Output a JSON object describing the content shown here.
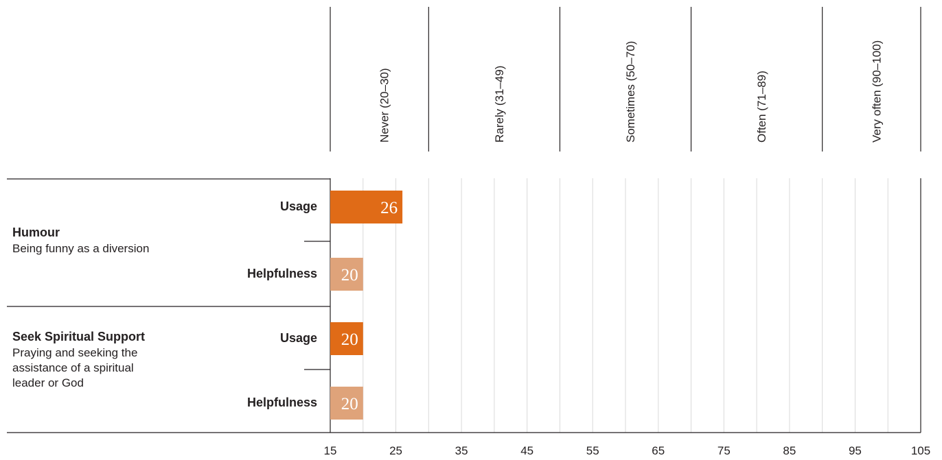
{
  "chart_data": {
    "type": "bar",
    "orientation": "horizontal",
    "xlim": [
      15,
      105
    ],
    "x_ticks": [
      15,
      25,
      35,
      45,
      55,
      65,
      75,
      85,
      95,
      105
    ],
    "bands": [
      {
        "label": "Never (20–30)",
        "from": 15,
        "to": 30
      },
      {
        "label": "Rarely (31–49)",
        "from": 30,
        "to": 50
      },
      {
        "label": "Sometimes (50–70)",
        "from": 50,
        "to": 70
      },
      {
        "label": "Often (71–89)",
        "from": 70,
        "to": 90
      },
      {
        "label": "Very often (90–100)",
        "from": 90,
        "to": 105
      }
    ],
    "groups": [
      {
        "title": "Humour",
        "description": [
          "Being funny as a diversion"
        ],
        "rows": [
          {
            "label": "Usage",
            "value": 26,
            "color": "#e06b17"
          },
          {
            "label": "Helpfulness",
            "value": 20,
            "color": "#dfa37a"
          }
        ]
      },
      {
        "title": "Seek Spiritual Support",
        "description": [
          "Praying and seeking the",
          "assistance of a spiritual",
          "leader or God"
        ],
        "rows": [
          {
            "label": "Usage",
            "value": 20,
            "color": "#e06b17"
          },
          {
            "label": "Helpfulness",
            "value": 20,
            "color": "#dfa37a"
          }
        ]
      }
    ],
    "grid": true
  }
}
